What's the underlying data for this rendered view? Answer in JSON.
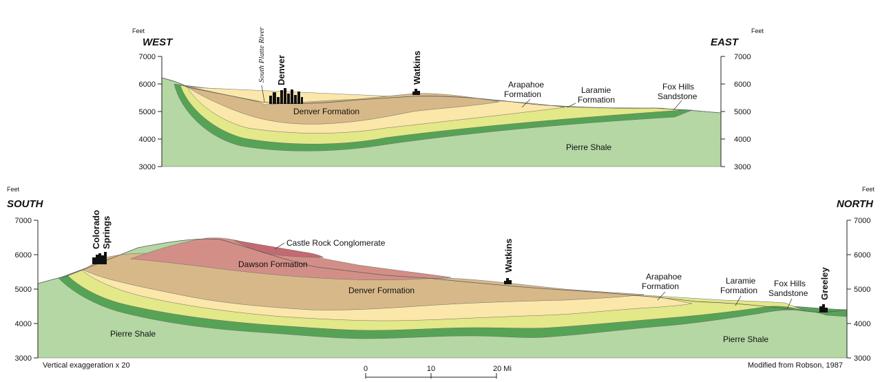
{
  "colors": {
    "pierre_shale": "#b4d7a4",
    "fox_hills": "#56a356",
    "laramie": "#e3e888",
    "arapahoe": "#fbe7a9",
    "denver_formation": "#d7b889",
    "dawson_formation": "#d38f87",
    "castle_rock": "#c36a70",
    "town_icon": "#111111"
  },
  "top_section": {
    "unit_left": "Feet",
    "unit_right": "Feet",
    "direction_left": "WEST",
    "direction_right": "EAST",
    "elevation_ticks": [
      "7000",
      "6000",
      "5000",
      "4000",
      "3000"
    ],
    "places": {
      "river": "South Platte River",
      "city": "Denver",
      "town": "Watkins"
    },
    "units": {
      "denver_formation": "Denver Formation",
      "arapahoe_line1": "Arapahoe",
      "arapahoe_line2": "Formation",
      "laramie_line1": "Laramie",
      "laramie_line2": "Formation",
      "fox_hills_line1": "Fox Hills",
      "fox_hills_line2": "Sandstone",
      "pierre_shale": "Pierre Shale"
    }
  },
  "bottom_section": {
    "unit_left": "Feet",
    "unit_right": "Feet",
    "direction_left": "SOUTH",
    "direction_right": "NORTH",
    "elevation_ticks": [
      "7000",
      "6000",
      "5000",
      "4000",
      "3000"
    ],
    "places": {
      "city_line1": "Colorado",
      "city_line2": "Springs",
      "town": "Watkins",
      "town2": "Greeley"
    },
    "units": {
      "castle_rock": "Castle Rock Conglomerate",
      "dawson_formation": "Dawson Formation",
      "denver_formation": "Denver Formation",
      "arapahoe_line1": "Arapahoe",
      "arapahoe_line2": "Formation",
      "laramie_line1": "Laramie",
      "laramie_line2": "Formation",
      "fox_hills_line1": "Fox Hills",
      "fox_hills_line2": "Sandstone",
      "pierre_shale_left": "Pierre Shale",
      "pierre_shale_right": "Pierre Shale"
    }
  },
  "footer": {
    "exaggeration": "Vertical exaggeration x 20",
    "credit": "Modified from Robson, 1987",
    "scale_labels": [
      "0",
      "10",
      "20 Mi"
    ]
  }
}
